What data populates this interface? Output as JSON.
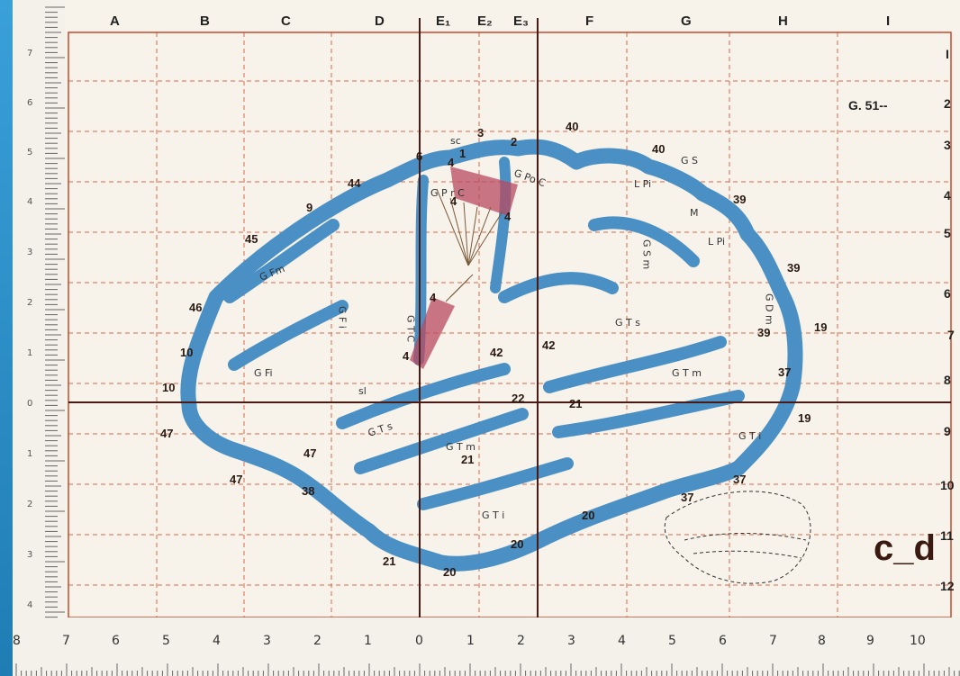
{
  "columns": [
    "A",
    "B",
    "C",
    "D",
    "E₁",
    "E₂",
    "E₃",
    "F",
    "G",
    "H",
    "I"
  ],
  "rows": [
    "I",
    "2",
    "3",
    "4",
    "5",
    "6",
    "7",
    "8",
    "9",
    "10",
    "11",
    "12"
  ],
  "ruler_bottom": [
    "8",
    "7",
    "6",
    "5",
    "4",
    "3",
    "2",
    "1",
    "0",
    "1",
    "2",
    "3",
    "4",
    "5",
    "6",
    "7",
    "8",
    "9",
    "10"
  ],
  "ruler_left": [
    "7",
    "6",
    "5",
    "4",
    "3",
    "2",
    "1",
    "0",
    "1",
    "2",
    "3",
    "4"
  ],
  "specimen_code": "G. 51--",
  "corner_text": "c_d",
  "areas": {
    "a6": "6",
    "a44": "44",
    "a9": "9",
    "a45": "45",
    "a46": "46",
    "a10a": "10",
    "a10b": "10",
    "a47a": "47",
    "a47b": "47",
    "a47c": "47",
    "a38": "38",
    "a21a": "21",
    "a20a": "20",
    "a20b": "20",
    "a20c": "20",
    "a21b": "21",
    "a22": "22",
    "a21c": "21",
    "a42a": "42",
    "a42b": "42",
    "a4a": "4",
    "a40a": "40",
    "a40b": "40",
    "a3": "3",
    "a2": "2",
    "a1": "1",
    "a39a": "39",
    "a39b": "39",
    "a39c": "39",
    "a19a": "19",
    "a19b": "19",
    "a37a": "37",
    "a37b": "37",
    "a37c": "37",
    "a4b": "4",
    "a4c": "4",
    "a4d": "4",
    "a4e": "4"
  },
  "gyri": {
    "gfm": "G Fm",
    "gfi": "G Fi",
    "gfi_v": "G F i",
    "gts1": "G T s",
    "gts2": "G T s",
    "gtm1": "G T m",
    "gtm2": "G T m",
    "gti1": "G T i",
    "gti2": "G T i",
    "lpi1": "L Pi",
    "lpi2": "L Pi",
    "gsm": "G S m",
    "gdm": "G D m",
    "gpoc": "G Po C",
    "gprc": "G P r C",
    "gtc": "G T C",
    "sl": "sl",
    "sc": "sc",
    "g_s": "G S",
    "m": "M"
  }
}
